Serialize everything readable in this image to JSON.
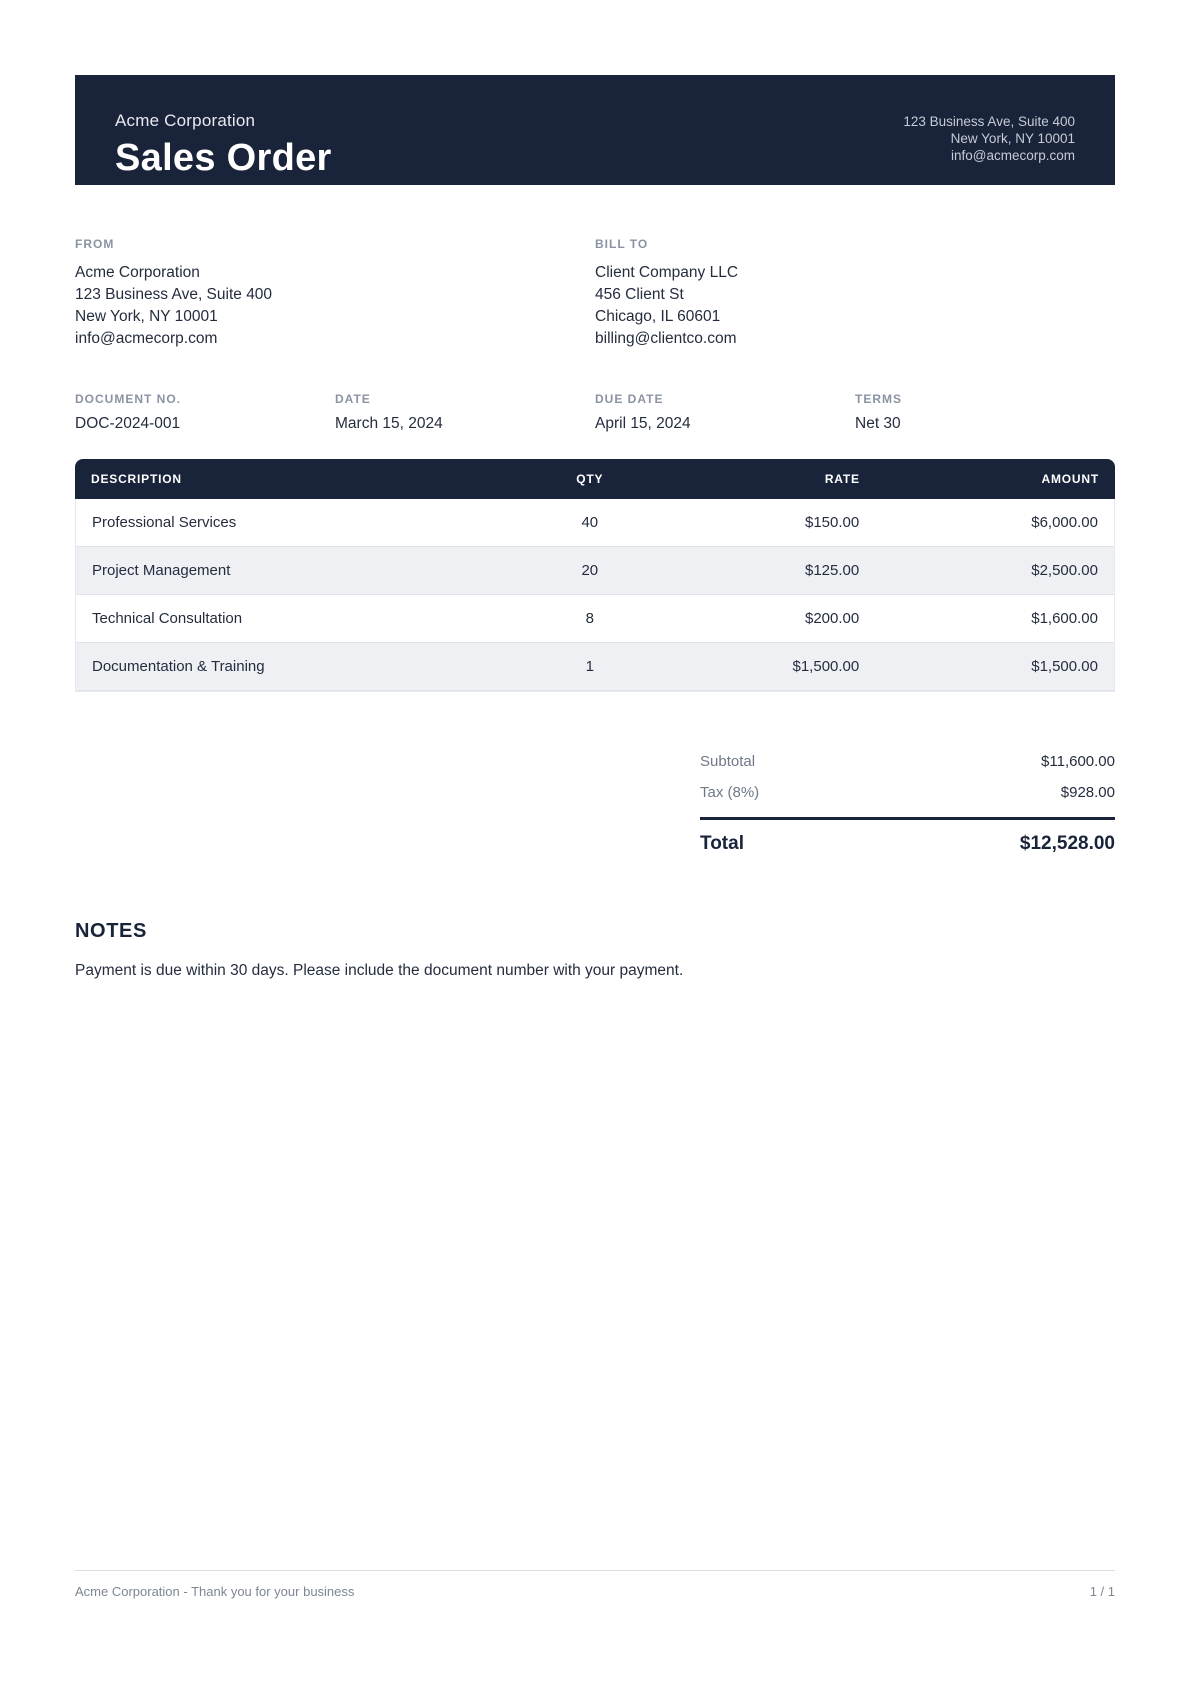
{
  "header": {
    "company": "Acme Corporation",
    "title": "Sales Order",
    "address_line1": "123 Business Ave, Suite 400",
    "address_line2": "New York, NY 10001",
    "address_line3": "info@acmecorp.com"
  },
  "from": {
    "label": "FROM",
    "lines": [
      "Acme Corporation",
      "123 Business Ave, Suite 400",
      "New York, NY 10001",
      "info@acmecorp.com"
    ]
  },
  "bill_to": {
    "label": "BILL TO",
    "lines": [
      "Client Company LLC",
      "456 Client St",
      "Chicago, IL 60601",
      "billing@clientco.com"
    ]
  },
  "meta": [
    {
      "label": "DOCUMENT NO.",
      "value": "DOC-2024-001"
    },
    {
      "label": "DATE",
      "value": "March 15, 2024"
    },
    {
      "label": "DUE DATE",
      "value": "April 15, 2024"
    },
    {
      "label": "TERMS",
      "value": "Net 30"
    }
  ],
  "table": {
    "headers": {
      "description": "DESCRIPTION",
      "qty": "QTY",
      "rate": "RATE",
      "amount": "AMOUNT"
    },
    "rows": [
      {
        "description": "Professional Services",
        "qty": "40",
        "rate": "$150.00",
        "amount": "$6,000.00"
      },
      {
        "description": "Project Management",
        "qty": "20",
        "rate": "$125.00",
        "amount": "$2,500.00"
      },
      {
        "description": "Technical Consultation",
        "qty": "8",
        "rate": "$200.00",
        "amount": "$1,600.00"
      },
      {
        "description": "Documentation & Training",
        "qty": "1",
        "rate": "$1,500.00",
        "amount": "$1,500.00"
      }
    ]
  },
  "totals": {
    "subtotal_label": "Subtotal",
    "subtotal_value": "$11,600.00",
    "tax_label": "Tax (8%)",
    "tax_value": "$928.00",
    "total_label": "Total",
    "total_value": "$12,528.00"
  },
  "notes": {
    "heading": "NOTES",
    "text": "Payment is due within 30 days. Please include the document number with your payment."
  },
  "footer": {
    "left": "Acme Corporation - Thank you for your business",
    "right": "1 / 1"
  },
  "colors": {
    "navy": "#192339",
    "alt-row": "#eef0f4",
    "label-gray": "#8b93a3",
    "body-ink": "#242d3e"
  }
}
